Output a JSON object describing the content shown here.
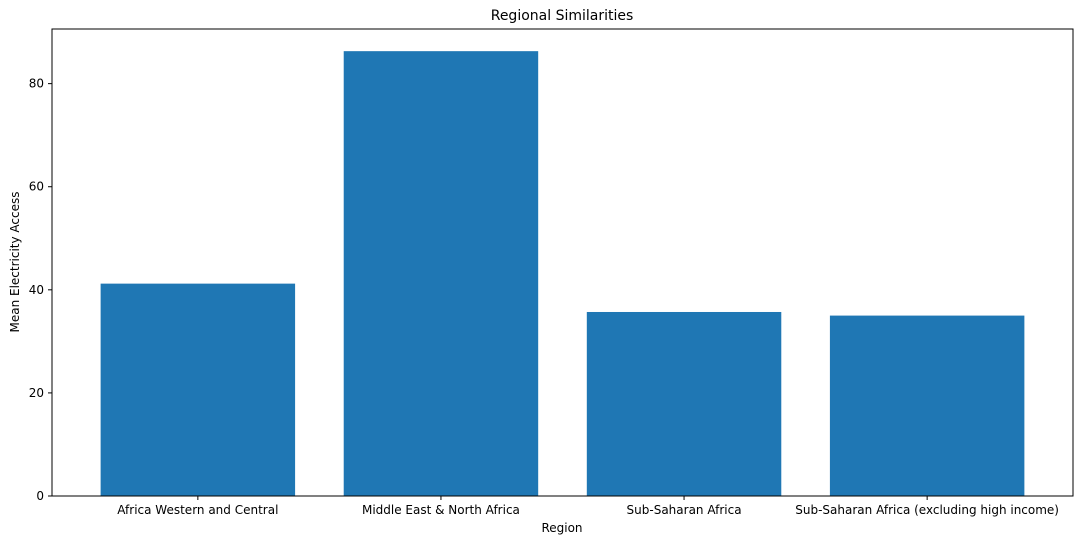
{
  "chart_data": {
    "type": "bar",
    "title": "Regional Similarities",
    "xlabel": "Region",
    "ylabel": "Mean Electricity Access",
    "categories": [
      "Africa Western and Central",
      "Middle East & North Africa",
      "Sub-Saharan Africa",
      "Sub-Saharan Africa (excluding high income)"
    ],
    "values": [
      41.2,
      86.3,
      35.7,
      35.0
    ],
    "ylim": [
      0,
      90.6
    ],
    "yticks": [
      0,
      20,
      40,
      60,
      80
    ],
    "bar_color": "#1f77b4",
    "grid": false,
    "legend": "none"
  }
}
